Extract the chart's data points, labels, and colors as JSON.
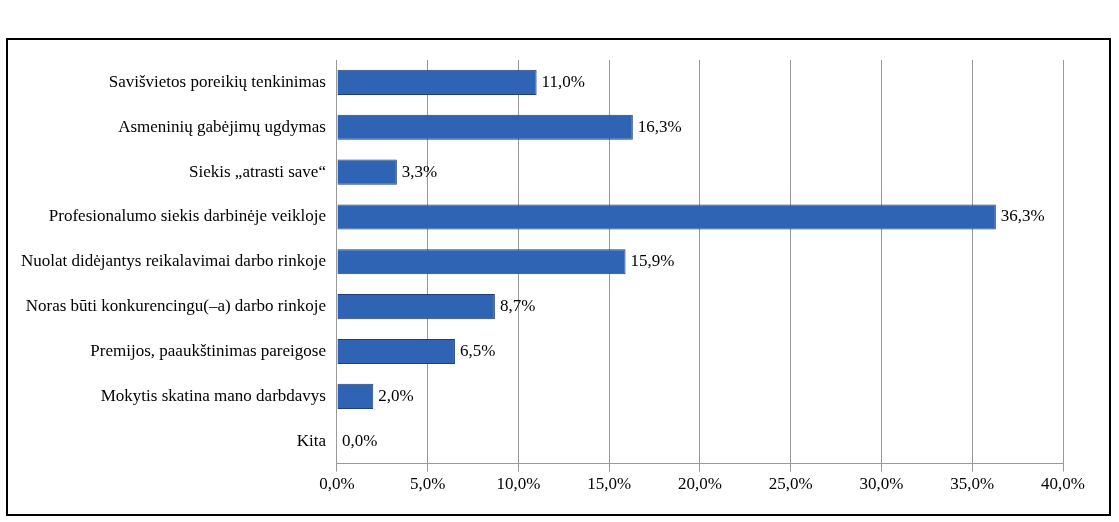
{
  "chart_data": {
    "type": "bar",
    "orientation": "horizontal",
    "categories": [
      "Savišvietos poreikių tenkinimas",
      "Asmeninių gabėjimų ugdymas",
      "Siekis „atrasti save“",
      "Profesionalumo siekis darbinėje veikloje",
      "Nuolat didėjantys reikalavimai darbo rinkoje",
      "Noras būti konkurencingu(–a) darbo rinkoje",
      "Premijos, paaukštinimas pareigose",
      "Mokytis skatina mano darbdavys",
      "Kita"
    ],
    "values": [
      11.0,
      16.3,
      3.3,
      36.3,
      15.9,
      8.7,
      6.5,
      2.0,
      0.0
    ],
    "value_labels": [
      "11,0%",
      "16,3%",
      "3,3%",
      "36,3%",
      "15,9%",
      "8,7%",
      "6,5%",
      "2,0%",
      "0,0%"
    ],
    "color": "#2f64b4",
    "xlim": [
      0,
      40
    ],
    "xticks": [
      {
        "value": 0,
        "label": "0,0%"
      },
      {
        "value": 5,
        "label": "5,0%"
      },
      {
        "value": 10,
        "label": "10,0%"
      },
      {
        "value": 15,
        "label": "15,0%"
      },
      {
        "value": 20,
        "label": "20,0%"
      },
      {
        "value": 25,
        "label": "25,0%"
      },
      {
        "value": 30,
        "label": "30,0%"
      },
      {
        "value": 35,
        "label": "35,0%"
      },
      {
        "value": 40,
        "label": "40,0%"
      }
    ],
    "grid": "x",
    "legend": false
  }
}
